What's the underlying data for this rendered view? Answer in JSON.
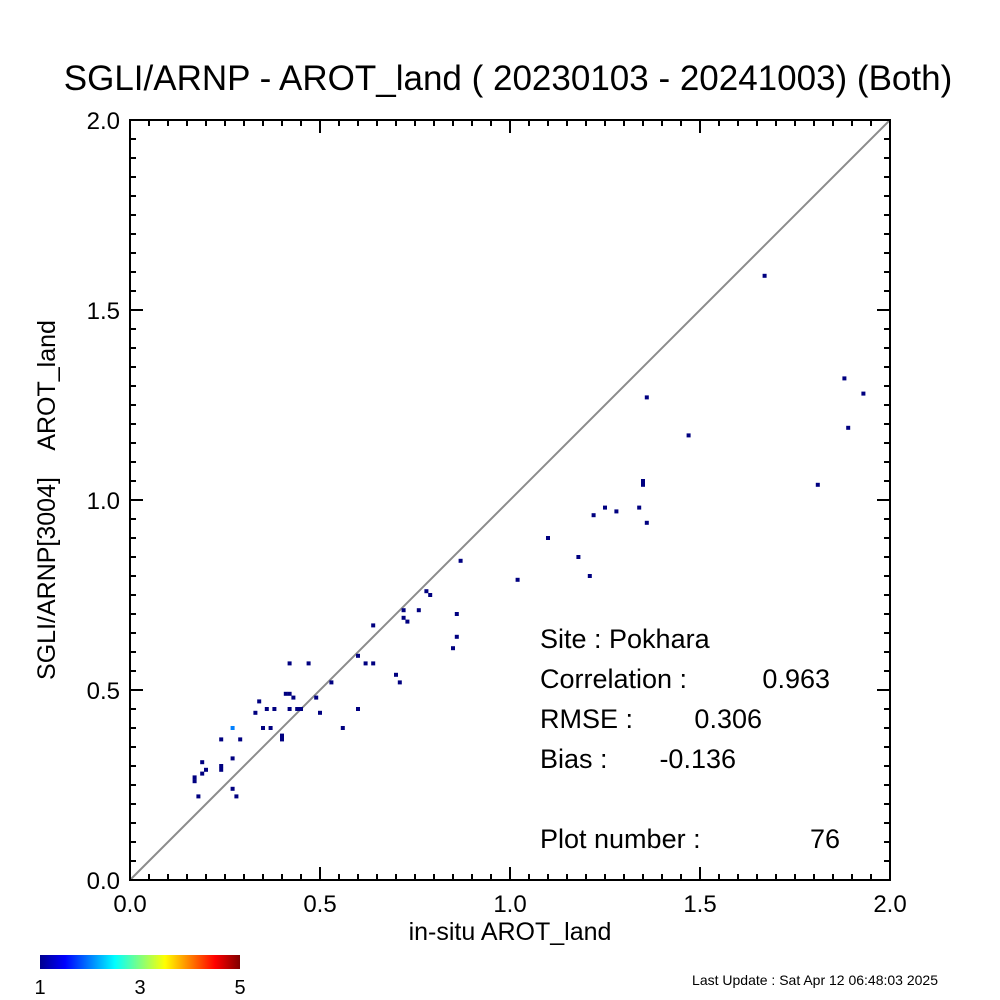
{
  "chart_data": {
    "type": "scatter",
    "title": "SGLI/ARNP - AROT_land ( 20230103 - 20241003) (Both)",
    "xlabel": "in-situ AROT_land",
    "ylabel": "SGLI/ARNP[3004]    AROT_land",
    "xlim": [
      0.0,
      2.0
    ],
    "ylim": [
      0.0,
      2.0
    ],
    "x_ticks": [
      "0.0",
      "0.5",
      "1.0",
      "1.5",
      "2.0"
    ],
    "y_ticks": [
      "0.0",
      "0.5",
      "1.0",
      "1.5",
      "2.0"
    ],
    "reference_line": "1:1",
    "grid": false,
    "points": [
      {
        "x": 0.17,
        "y": 0.27,
        "count": 1
      },
      {
        "x": 0.17,
        "y": 0.26,
        "count": 1
      },
      {
        "x": 0.18,
        "y": 0.22,
        "count": 1
      },
      {
        "x": 0.19,
        "y": 0.28,
        "count": 1
      },
      {
        "x": 0.19,
        "y": 0.31,
        "count": 1
      },
      {
        "x": 0.2,
        "y": 0.29,
        "count": 1
      },
      {
        "x": 0.24,
        "y": 0.29,
        "count": 1
      },
      {
        "x": 0.24,
        "y": 0.3,
        "count": 1
      },
      {
        "x": 0.24,
        "y": 0.37,
        "count": 1
      },
      {
        "x": 0.27,
        "y": 0.32,
        "count": 1
      },
      {
        "x": 0.27,
        "y": 0.24,
        "count": 1
      },
      {
        "x": 0.28,
        "y": 0.22,
        "count": 1
      },
      {
        "x": 0.27,
        "y": 0.4,
        "count": 2
      },
      {
        "x": 0.29,
        "y": 0.37,
        "count": 1
      },
      {
        "x": 0.33,
        "y": 0.44,
        "count": 1
      },
      {
        "x": 0.34,
        "y": 0.47,
        "count": 1
      },
      {
        "x": 0.35,
        "y": 0.4,
        "count": 1
      },
      {
        "x": 0.36,
        "y": 0.45,
        "count": 1
      },
      {
        "x": 0.37,
        "y": 0.4,
        "count": 1
      },
      {
        "x": 0.38,
        "y": 0.45,
        "count": 1
      },
      {
        "x": 0.4,
        "y": 0.37,
        "count": 1
      },
      {
        "x": 0.4,
        "y": 0.38,
        "count": 1
      },
      {
        "x": 0.41,
        "y": 0.49,
        "count": 1
      },
      {
        "x": 0.42,
        "y": 0.49,
        "count": 1
      },
      {
        "x": 0.42,
        "y": 0.57,
        "count": 1
      },
      {
        "x": 0.42,
        "y": 0.45,
        "count": 1
      },
      {
        "x": 0.43,
        "y": 0.48,
        "count": 1
      },
      {
        "x": 0.44,
        "y": 0.45,
        "count": 1
      },
      {
        "x": 0.45,
        "y": 0.45,
        "count": 1
      },
      {
        "x": 0.47,
        "y": 0.57,
        "count": 1
      },
      {
        "x": 0.49,
        "y": 0.48,
        "count": 1
      },
      {
        "x": 0.5,
        "y": 0.44,
        "count": 1
      },
      {
        "x": 0.53,
        "y": 0.52,
        "count": 1
      },
      {
        "x": 0.56,
        "y": 0.4,
        "count": 1
      },
      {
        "x": 0.6,
        "y": 0.59,
        "count": 1
      },
      {
        "x": 0.6,
        "y": 0.45,
        "count": 1
      },
      {
        "x": 0.62,
        "y": 0.57,
        "count": 1
      },
      {
        "x": 0.64,
        "y": 0.57,
        "count": 1
      },
      {
        "x": 0.64,
        "y": 0.67,
        "count": 1
      },
      {
        "x": 0.7,
        "y": 0.54,
        "count": 1
      },
      {
        "x": 0.71,
        "y": 0.52,
        "count": 1
      },
      {
        "x": 0.72,
        "y": 0.71,
        "count": 1
      },
      {
        "x": 0.72,
        "y": 0.69,
        "count": 1
      },
      {
        "x": 0.73,
        "y": 0.68,
        "count": 1
      },
      {
        "x": 0.76,
        "y": 0.71,
        "count": 1
      },
      {
        "x": 0.78,
        "y": 0.76,
        "count": 1
      },
      {
        "x": 0.79,
        "y": 0.75,
        "count": 1
      },
      {
        "x": 0.85,
        "y": 0.61,
        "count": 1
      },
      {
        "x": 0.86,
        "y": 0.64,
        "count": 1
      },
      {
        "x": 0.86,
        "y": 0.7,
        "count": 1
      },
      {
        "x": 0.87,
        "y": 0.84,
        "count": 1
      },
      {
        "x": 1.02,
        "y": 0.79,
        "count": 1
      },
      {
        "x": 1.1,
        "y": 0.9,
        "count": 1
      },
      {
        "x": 1.18,
        "y": 0.85,
        "count": 1
      },
      {
        "x": 1.21,
        "y": 0.8,
        "count": 1
      },
      {
        "x": 1.22,
        "y": 0.96,
        "count": 1
      },
      {
        "x": 1.25,
        "y": 0.98,
        "count": 1
      },
      {
        "x": 1.28,
        "y": 0.97,
        "count": 1
      },
      {
        "x": 1.34,
        "y": 0.98,
        "count": 1
      },
      {
        "x": 1.35,
        "y": 1.04,
        "count": 1
      },
      {
        "x": 1.35,
        "y": 1.05,
        "count": 1
      },
      {
        "x": 1.36,
        "y": 0.94,
        "count": 1
      },
      {
        "x": 1.36,
        "y": 1.27,
        "count": 1
      },
      {
        "x": 1.47,
        "y": 1.17,
        "count": 1
      },
      {
        "x": 1.67,
        "y": 1.59,
        "count": 1
      },
      {
        "x": 1.81,
        "y": 1.04,
        "count": 1
      },
      {
        "x": 1.88,
        "y": 1.32,
        "count": 1
      },
      {
        "x": 1.89,
        "y": 1.19,
        "count": 1
      },
      {
        "x": 1.93,
        "y": 1.28,
        "count": 1
      }
    ],
    "stats": {
      "site": "Site : Pokhara",
      "correlation_label": "Correlation :",
      "correlation": "0.963",
      "rmse_label": "RMSE :",
      "rmse": "0.306",
      "bias_label": "Bias :",
      "bias": "-0.136",
      "plot_number_label": "Plot number :",
      "plot_number": "76"
    },
    "colorbar": {
      "min": 1,
      "max": 5,
      "tick_labels": [
        "1",
        "3",
        "5"
      ],
      "colormap": "jet"
    },
    "footer": "Last Update : Sat Apr 12 06:48:03 2025"
  }
}
